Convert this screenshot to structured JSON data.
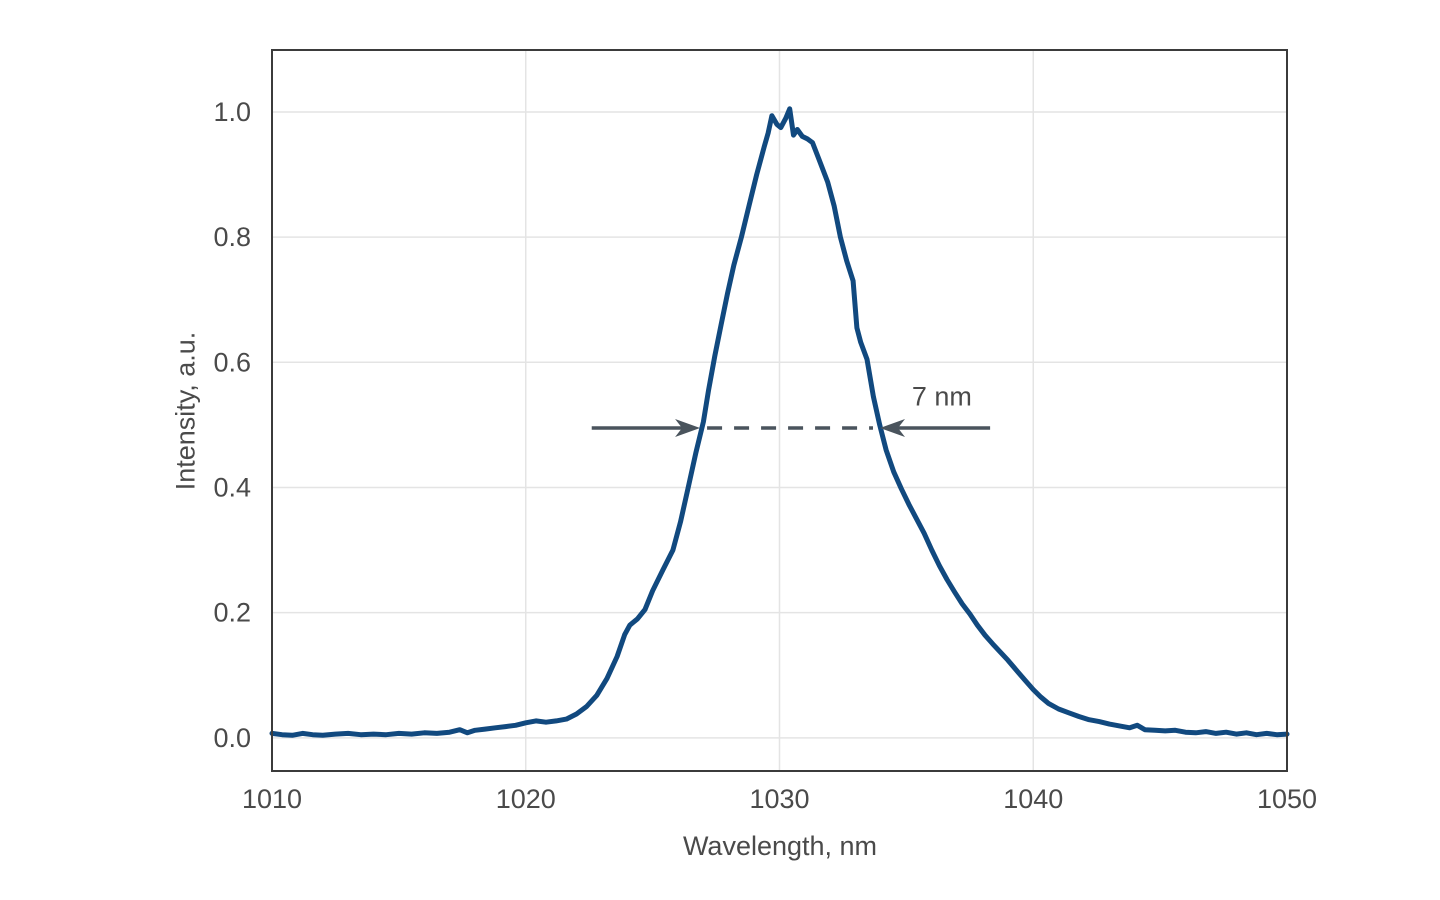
{
  "chart_data": {
    "type": "line",
    "title": "",
    "xlabel": "Wavelength, nm",
    "ylabel": "Intensity, a.u.",
    "xlim": [
      1010,
      1050
    ],
    "ylim": [
      -0.053,
      1.099
    ],
    "grid": true,
    "legend": "none",
    "x_ticks": {
      "values": [
        1010,
        1020,
        1030,
        1040,
        1050
      ],
      "labels": [
        "1010",
        "1020",
        "1030",
        "1040",
        "1050"
      ]
    },
    "y_ticks": {
      "values": [
        0,
        0.2,
        0.4,
        0.6,
        0.8,
        1.0
      ],
      "labels": [
        "0.0",
        "0.2",
        "0.4",
        "0.6",
        "0.8",
        "1.0"
      ]
    },
    "series": [
      {
        "name": "laser-spectrum",
        "color": "#11497f",
        "line_width": 5,
        "points": [
          [
            1010.0,
            0.007
          ],
          [
            1010.4,
            0.005
          ],
          [
            1010.8,
            0.004
          ],
          [
            1011.2,
            0.007
          ],
          [
            1011.6,
            0.005
          ],
          [
            1012.0,
            0.004
          ],
          [
            1012.5,
            0.006
          ],
          [
            1013.0,
            0.007
          ],
          [
            1013.5,
            0.005
          ],
          [
            1014.0,
            0.006
          ],
          [
            1014.5,
            0.005
          ],
          [
            1015.0,
            0.007
          ],
          [
            1015.5,
            0.006
          ],
          [
            1016.0,
            0.008
          ],
          [
            1016.5,
            0.007
          ],
          [
            1017.0,
            0.009
          ],
          [
            1017.4,
            0.013
          ],
          [
            1017.7,
            0.008
          ],
          [
            1018.0,
            0.012
          ],
          [
            1018.4,
            0.014
          ],
          [
            1018.8,
            0.016
          ],
          [
            1019.2,
            0.018
          ],
          [
            1019.6,
            0.02
          ],
          [
            1020.0,
            0.024
          ],
          [
            1020.4,
            0.027
          ],
          [
            1020.8,
            0.025
          ],
          [
            1021.2,
            0.027
          ],
          [
            1021.6,
            0.03
          ],
          [
            1022.0,
            0.038
          ],
          [
            1022.4,
            0.05
          ],
          [
            1022.8,
            0.068
          ],
          [
            1023.2,
            0.095
          ],
          [
            1023.6,
            0.13
          ],
          [
            1023.9,
            0.165
          ],
          [
            1024.1,
            0.18
          ],
          [
            1024.4,
            0.19
          ],
          [
            1024.7,
            0.205
          ],
          [
            1025.0,
            0.235
          ],
          [
            1025.4,
            0.268
          ],
          [
            1025.8,
            0.3
          ],
          [
            1026.1,
            0.345
          ],
          [
            1026.4,
            0.4
          ],
          [
            1026.7,
            0.455
          ],
          [
            1027.0,
            0.505
          ],
          [
            1027.2,
            0.555
          ],
          [
            1027.45,
            0.61
          ],
          [
            1027.7,
            0.66
          ],
          [
            1027.95,
            0.71
          ],
          [
            1028.2,
            0.755
          ],
          [
            1028.5,
            0.8
          ],
          [
            1028.8,
            0.85
          ],
          [
            1029.1,
            0.9
          ],
          [
            1029.4,
            0.945
          ],
          [
            1029.55,
            0.966
          ],
          [
            1029.7,
            0.994
          ],
          [
            1029.9,
            0.98
          ],
          [
            1030.05,
            0.975
          ],
          [
            1030.25,
            0.99
          ],
          [
            1030.4,
            1.005
          ],
          [
            1030.55,
            0.963
          ],
          [
            1030.7,
            0.972
          ],
          [
            1030.9,
            0.961
          ],
          [
            1031.1,
            0.957
          ],
          [
            1031.3,
            0.951
          ],
          [
            1031.55,
            0.925
          ],
          [
            1031.9,
            0.888
          ],
          [
            1032.15,
            0.85
          ],
          [
            1032.4,
            0.8
          ],
          [
            1032.65,
            0.762
          ],
          [
            1032.9,
            0.73
          ],
          [
            1033.05,
            0.655
          ],
          [
            1033.2,
            0.632
          ],
          [
            1033.45,
            0.605
          ],
          [
            1033.7,
            0.545
          ],
          [
            1033.95,
            0.5
          ],
          [
            1034.2,
            0.46
          ],
          [
            1034.5,
            0.425
          ],
          [
            1034.8,
            0.398
          ],
          [
            1035.1,
            0.373
          ],
          [
            1035.4,
            0.35
          ],
          [
            1035.7,
            0.327
          ],
          [
            1036.0,
            0.3
          ],
          [
            1036.3,
            0.275
          ],
          [
            1036.6,
            0.253
          ],
          [
            1036.9,
            0.233
          ],
          [
            1037.2,
            0.214
          ],
          [
            1037.5,
            0.198
          ],
          [
            1037.8,
            0.18
          ],
          [
            1038.1,
            0.164
          ],
          [
            1038.4,
            0.15
          ],
          [
            1038.7,
            0.137
          ],
          [
            1039.0,
            0.124
          ],
          [
            1039.4,
            0.105
          ],
          [
            1039.7,
            0.091
          ],
          [
            1040.0,
            0.077
          ],
          [
            1040.3,
            0.065
          ],
          [
            1040.6,
            0.055
          ],
          [
            1041.0,
            0.046
          ],
          [
            1041.4,
            0.04
          ],
          [
            1041.8,
            0.034
          ],
          [
            1042.2,
            0.029
          ],
          [
            1042.6,
            0.026
          ],
          [
            1043.0,
            0.022
          ],
          [
            1043.4,
            0.019
          ],
          [
            1043.8,
            0.016
          ],
          [
            1044.1,
            0.02
          ],
          [
            1044.4,
            0.013
          ],
          [
            1044.8,
            0.012
          ],
          [
            1045.2,
            0.011
          ],
          [
            1045.6,
            0.012
          ],
          [
            1046.0,
            0.009
          ],
          [
            1046.4,
            0.008
          ],
          [
            1046.8,
            0.01
          ],
          [
            1047.2,
            0.007
          ],
          [
            1047.6,
            0.009
          ],
          [
            1048.0,
            0.006
          ],
          [
            1048.4,
            0.008
          ],
          [
            1048.8,
            0.005
          ],
          [
            1049.2,
            0.007
          ],
          [
            1049.6,
            0.005
          ],
          [
            1050.0,
            0.006
          ]
        ]
      }
    ],
    "annotation": {
      "label": "7 nm",
      "y": 0.495,
      "x_line_start": 1022.6,
      "x_left_tip": 1026.87,
      "x_right_tip": 1033.96,
      "x_line_end": 1038.3,
      "label_x": 1036.4,
      "label_y": 0.545,
      "color": "#4a545d"
    },
    "styles": {
      "grid_color": "#e4e4e4",
      "box_color": "#3b3b3b",
      "text_color": "#4a4a4a",
      "background": "#ffffff"
    }
  }
}
